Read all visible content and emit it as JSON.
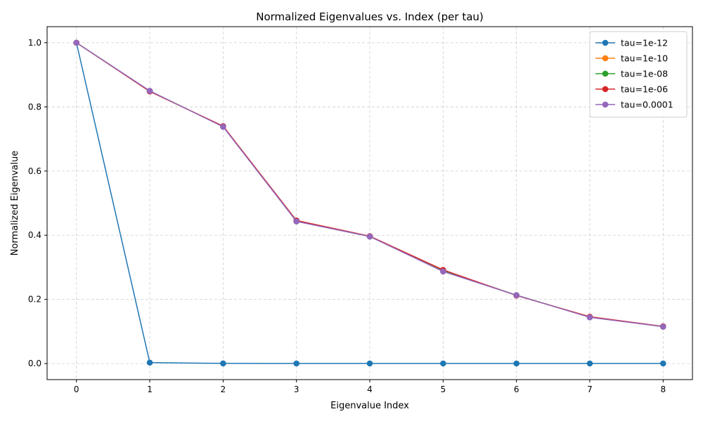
{
  "chart_data": {
    "type": "line",
    "title": "Normalized Eigenvalues vs. Index (per tau)",
    "xlabel": "Eigenvalue Index",
    "ylabel": "Normalized Eigenvalue",
    "x": [
      0,
      1,
      2,
      3,
      4,
      5,
      6,
      7,
      8
    ],
    "xlim": [
      -0.4,
      8.4
    ],
    "ylim": [
      -0.05,
      1.05
    ],
    "xticks": [
      "0",
      "1",
      "2",
      "3",
      "4",
      "5",
      "6",
      "7",
      "8"
    ],
    "yticks": [
      "0.0",
      "0.2",
      "0.4",
      "0.6",
      "0.8",
      "1.0"
    ],
    "grid": true,
    "legend_position": "top-right",
    "marker": "circle",
    "series": [
      {
        "name": "tau=1e-12",
        "color": "#1f77b4",
        "values": [
          1.0,
          0.003,
          0.0005,
          0.0003,
          0.0003,
          0.0003,
          0.0003,
          0.0003,
          0.0003
        ]
      },
      {
        "name": "tau=1e-10",
        "color": "#ff7f0e",
        "values": [
          1.0,
          0.849,
          0.739,
          0.445,
          0.396,
          0.29,
          0.213,
          0.145,
          0.115
        ]
      },
      {
        "name": "tau=1e-08",
        "color": "#2ca02c",
        "values": [
          1.0,
          0.849,
          0.739,
          0.445,
          0.396,
          0.29,
          0.213,
          0.145,
          0.115
        ]
      },
      {
        "name": "tau=1e-06",
        "color": "#d62728",
        "values": [
          1.0,
          0.848,
          0.74,
          0.446,
          0.397,
          0.292,
          0.212,
          0.146,
          0.116
        ]
      },
      {
        "name": "tau=0.0001",
        "color": "#9467bd",
        "values": [
          1.0,
          0.85,
          0.738,
          0.443,
          0.396,
          0.287,
          0.213,
          0.144,
          0.115
        ]
      }
    ]
  }
}
